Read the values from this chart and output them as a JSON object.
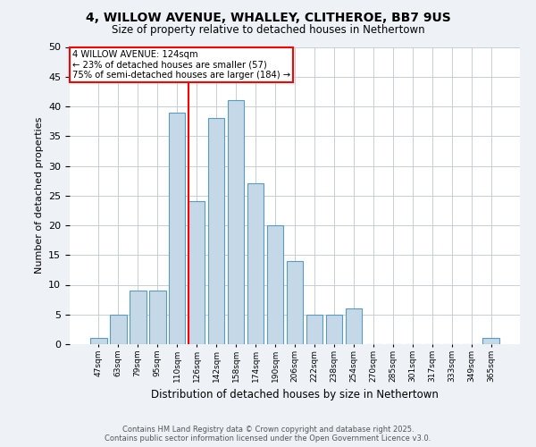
{
  "title_line1": "4, WILLOW AVENUE, WHALLEY, CLITHEROE, BB7 9US",
  "title_line2": "Size of property relative to detached houses in Nethertown",
  "xlabel": "Distribution of detached houses by size in Nethertown",
  "ylabel": "Number of detached properties",
  "bar_labels": [
    "47sqm",
    "63sqm",
    "79sqm",
    "95sqm",
    "110sqm",
    "126sqm",
    "142sqm",
    "158sqm",
    "174sqm",
    "190sqm",
    "206sqm",
    "222sqm",
    "238sqm",
    "254sqm",
    "270sqm",
    "285sqm",
    "301sqm",
    "317sqm",
    "333sqm",
    "349sqm",
    "365sqm"
  ],
  "bar_values": [
    1,
    5,
    9,
    9,
    39,
    24,
    38,
    41,
    27,
    20,
    14,
    5,
    5,
    6,
    0,
    0,
    0,
    0,
    0,
    0,
    1
  ],
  "bar_color": "#c5d8e8",
  "bar_edgecolor": "#5a9abf",
  "ylim": [
    0,
    50
  ],
  "yticks": [
    0,
    5,
    10,
    15,
    20,
    25,
    30,
    35,
    40,
    45,
    50
  ],
  "red_line_index": 5,
  "annotation_title": "4 WILLOW AVENUE: 124sqm",
  "annotation_line2": "← 23% of detached houses are smaller (57)",
  "annotation_line3": "75% of semi-detached houses are larger (184) →",
  "footer_line1": "Contains HM Land Registry data © Crown copyright and database right 2025.",
  "footer_line2": "Contains public sector information licensed under the Open Government Licence v3.0.",
  "background_color": "#eef2f7",
  "plot_bg_color": "#ffffff"
}
